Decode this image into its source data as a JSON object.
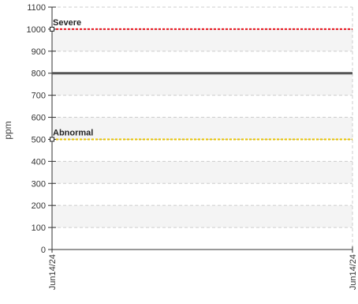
{
  "chart_data": {
    "type": "line",
    "ylabel": "ppm",
    "ylim": [
      0,
      1100
    ],
    "yticks": [
      0,
      100,
      200,
      300,
      400,
      500,
      600,
      700,
      800,
      900,
      1000,
      1100
    ],
    "x_tick_labels": [
      "Jun14/24",
      "Jun14/24"
    ],
    "grid": true,
    "series": [
      {
        "name": "",
        "color": "#555555",
        "values": [
          800,
          800
        ]
      }
    ],
    "thresholds": [
      {
        "label": "Severe",
        "value": 1000,
        "color": "#e8121b"
      },
      {
        "label": "Abnormal",
        "value": 500,
        "color": "#e7c200"
      }
    ]
  },
  "colors": {
    "band": "#f4f4f4",
    "grid": "#cccccc",
    "axis": "#333333"
  }
}
